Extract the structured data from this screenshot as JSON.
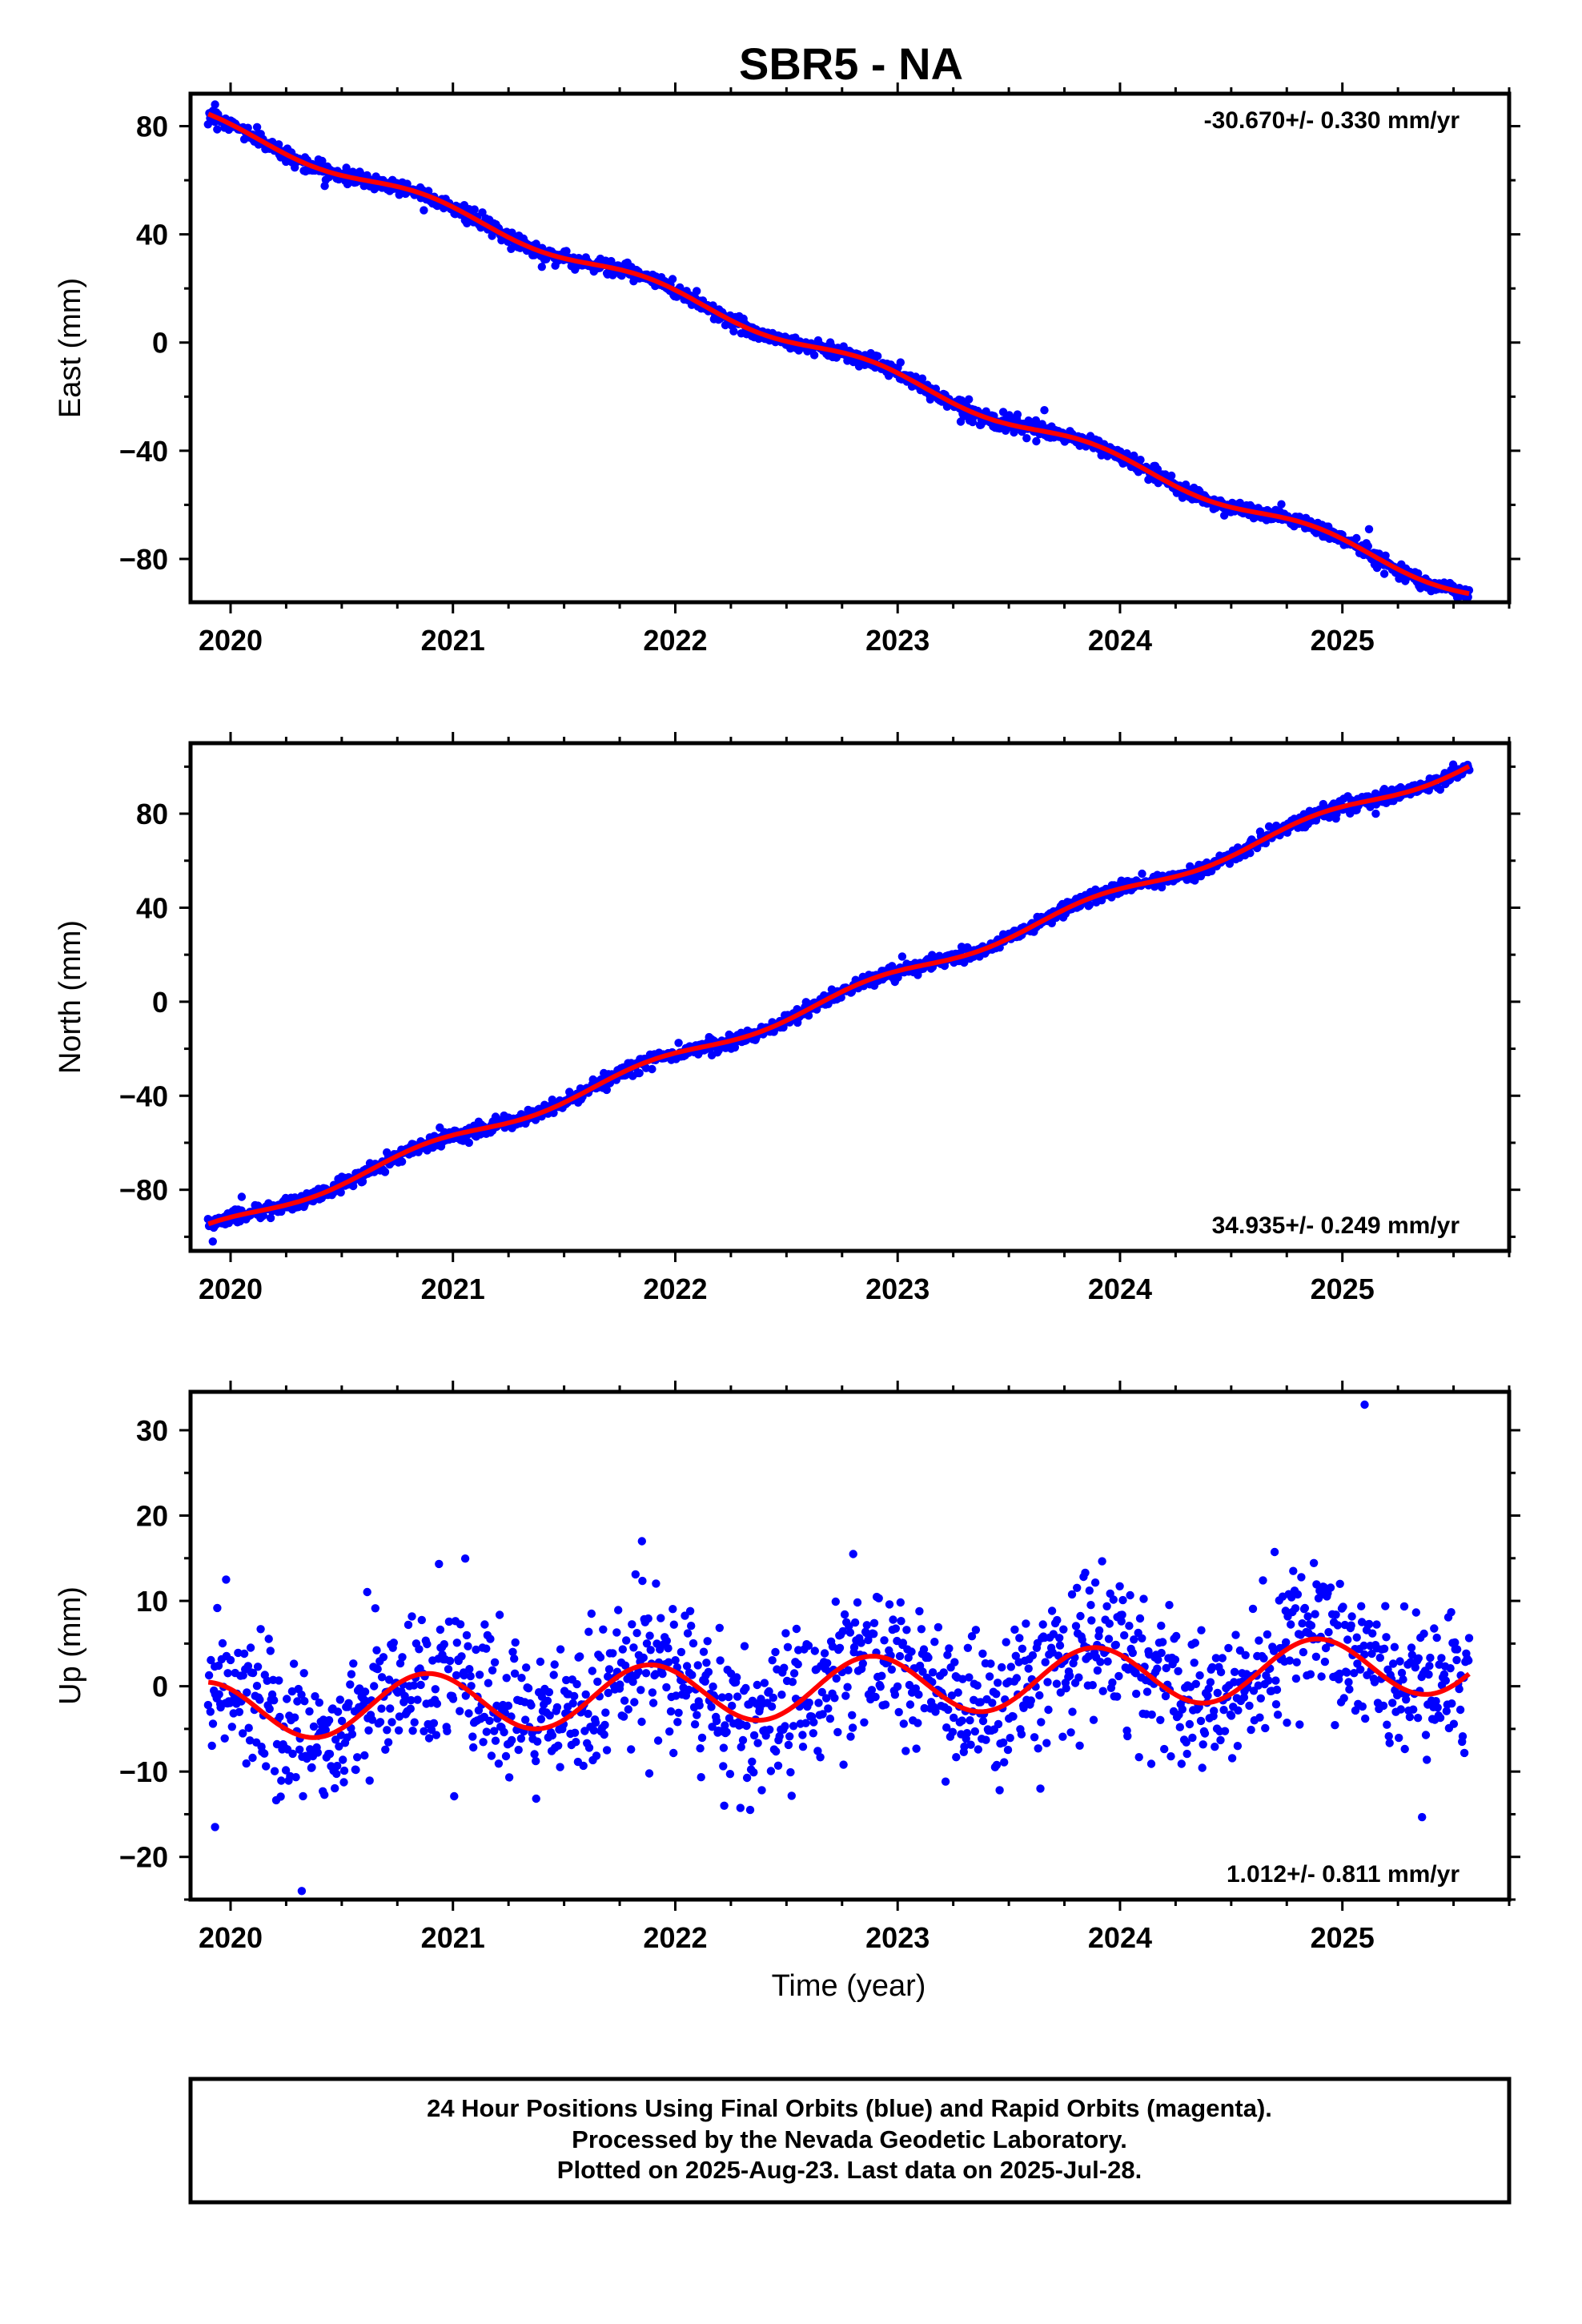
{
  "title": "SBR5 - NA",
  "xlabel": "Time (year)",
  "footer": {
    "line1": "24 Hour Positions Using Final Orbits (blue) and Rapid Orbits (magenta).",
    "line2": "Processed by the Nevada Geodetic Laboratory.",
    "line3": "Plotted on 2025-Aug-23. Last data on 2025-Jul-28."
  },
  "colors": {
    "points": "#0000ff",
    "fit": "#ff0000",
    "axes": "#000000"
  },
  "chart_data": [
    {
      "type": "scatter",
      "ylabel": "East (mm)",
      "rate_label": "-30.670+/- 0.330 mm/yr",
      "rate_position": "top-right",
      "xlim": [
        2019.82,
        2025.75
      ],
      "ylim": [
        -96,
        92
      ],
      "xticks": [
        2020,
        2021,
        2022,
        2023,
        2024,
        2025
      ],
      "yticks": [
        -80,
        -40,
        0,
        40,
        80
      ],
      "series": [
        {
          "kind": "points",
          "x_range": [
            2019.9,
            2025.57
          ],
          "count": 1400,
          "trend_mm_per_yr": -30.67,
          "value_at_start": 82,
          "seasonal_amplitude": 2.5,
          "scatter_sd": 1.4,
          "outliers": [
            {
              "x": 2019.93,
              "y": 88
            },
            {
              "x": 2021.4,
              "y": 28
            },
            {
              "x": 2025.12,
              "y": -69
            },
            {
              "x": 2023.66,
              "y": -25
            }
          ]
        },
        {
          "kind": "fit_line",
          "x_range": [
            2019.9,
            2025.57
          ],
          "trend_mm_per_yr": -30.67,
          "value_at_start": 82,
          "seasonal_amplitude": 2.5
        }
      ]
    },
    {
      "type": "scatter",
      "ylabel": "North (mm)",
      "rate_label": "34.935+/- 0.249 mm/yr",
      "rate_position": "bottom-right",
      "xlim": [
        2019.82,
        2025.75
      ],
      "ylim": [
        -106,
        110
      ],
      "xticks": [
        2020,
        2021,
        2022,
        2023,
        2024,
        2025
      ],
      "yticks": [
        -80,
        -40,
        0,
        40,
        80
      ],
      "series": [
        {
          "kind": "points",
          "x_range": [
            2019.9,
            2025.57
          ],
          "count": 1400,
          "trend_mm_per_yr": 34.935,
          "value_at_start": -97,
          "seasonal_amplitude": 2.5,
          "scatter_sd": 1.5,
          "outliers": [
            {
              "x": 2019.92,
              "y": -102
            },
            {
              "x": 2020.05,
              "y": -83
            },
            {
              "x": 2025.15,
              "y": 80
            }
          ]
        },
        {
          "kind": "fit_line",
          "x_range": [
            2019.9,
            2025.57
          ],
          "trend_mm_per_yr": 34.935,
          "value_at_start": -97,
          "seasonal_amplitude": 2.5
        }
      ]
    },
    {
      "type": "scatter",
      "ylabel": "Up (mm)",
      "rate_label": "1.012+/- 0.811 mm/yr",
      "rate_position": "bottom-right",
      "xlim": [
        2019.82,
        2025.75
      ],
      "ylim": [
        -25,
        34.5
      ],
      "xticks": [
        2020,
        2021,
        2022,
        2023,
        2024,
        2025
      ],
      "yticks": [
        -20,
        -10,
        0,
        10,
        20,
        30
      ],
      "series": [
        {
          "kind": "points",
          "x_range": [
            2019.9,
            2025.57
          ],
          "count": 1400,
          "trend_mm_per_yr": 1.012,
          "value_at_start": -3,
          "seasonal_amplitude": 3.5,
          "scatter_sd": 4.2,
          "outliers": [
            {
              "x": 2025.1,
              "y": 33
            },
            {
              "x": 2020.32,
              "y": -24
            },
            {
              "x": 2021.85,
              "y": 17
            },
            {
              "x": 2022.22,
              "y": -14
            },
            {
              "x": 2019.93,
              "y": -16.5
            },
            {
              "x": 2019.98,
              "y": 12.5
            },
            {
              "x": 2022.8,
              "y": 15.5
            }
          ]
        },
        {
          "kind": "fit_line",
          "x_range": [
            2019.9,
            2025.57
          ],
          "trend_mm_per_yr": 1.012,
          "value_at_start": -3,
          "seasonal_amplitude": 3.5
        }
      ]
    }
  ]
}
